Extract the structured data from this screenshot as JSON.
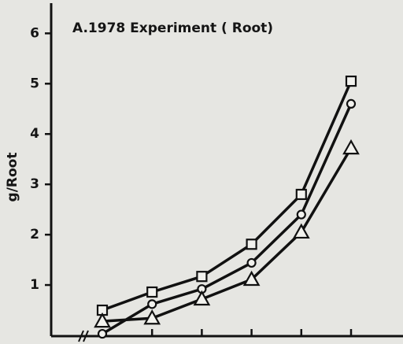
{
  "chart_data": {
    "type": "line",
    "title": "A.1978 Experiment ( Root)",
    "y_label": "g/Root",
    "categories": [
      null,
      null,
      null,
      null,
      null,
      null
    ],
    "series": [
      {
        "name": null,
        "marker": "square",
        "color": "#111111",
        "values": [
          0.5,
          0.86,
          1.17,
          1.81,
          2.8,
          5.05
        ]
      },
      {
        "name": null,
        "marker": "circle",
        "color": "#111111",
        "values": [
          0.03,
          0.62,
          0.92,
          1.44,
          2.4,
          4.6
        ]
      },
      {
        "name": null,
        "marker": "triangle",
        "color": "#111111",
        "values": [
          0.28,
          0.34,
          0.72,
          1.11,
          2.05,
          3.72
        ]
      }
    ],
    "ylim": [
      0,
      6.6
    ],
    "yticks": [
      1,
      2,
      3,
      4,
      5,
      6
    ],
    "grid": false
  }
}
